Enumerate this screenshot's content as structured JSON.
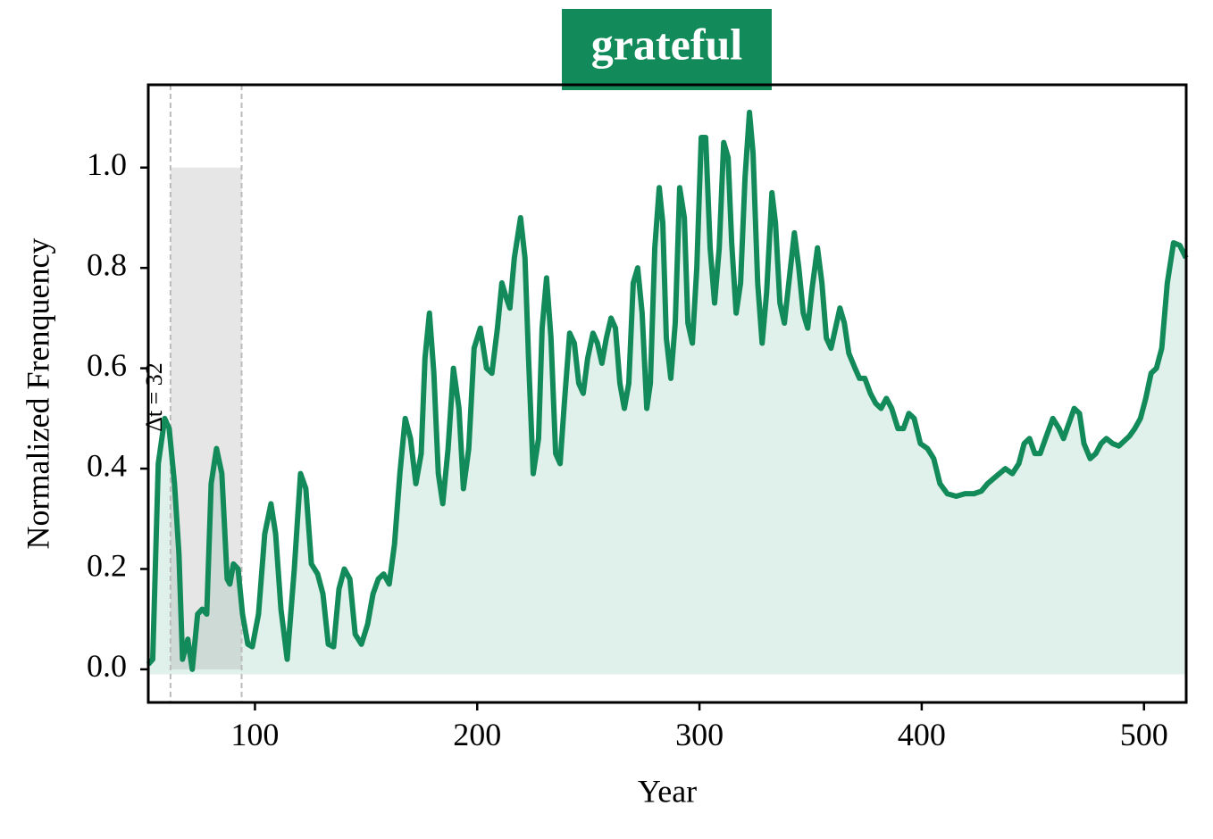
{
  "chart_data": {
    "type": "line",
    "title": "grateful",
    "x_label": "Year",
    "y_label": "Normalized Frenquency",
    "annotation": "Δt = 32",
    "xlim": [
      52,
      519
    ],
    "ylim": [
      -0.066,
      1.165
    ],
    "xticks": [
      100,
      200,
      300,
      400,
      500
    ],
    "yticks": [
      {
        "value": 0,
        "label": "0.0"
      },
      0.2,
      0.4,
      0.6,
      0.8,
      {
        "value": 1,
        "label": "1.0"
      }
    ],
    "area_baseline": -0.01,
    "shade": {
      "x": [
        62,
        94
      ],
      "y": [
        0,
        1
      ]
    },
    "series": [
      {
        "color": "#138a59",
        "x": [
          52,
          54,
          56.5,
          59.4,
          61.4,
          63.8,
          65.8,
          67.4,
          69.8,
          71.8,
          74.2,
          76.3,
          78.3,
          80.3,
          82.7,
          85.1,
          87.5,
          88.7,
          90.3,
          92.4,
          94.4,
          96.8,
          98.8,
          101.6,
          104.4,
          107.2,
          109.3,
          111.7,
          114.5,
          117.7,
          120.5,
          122.9,
          125.4,
          128.2,
          130.6,
          133,
          135.4,
          137.8,
          140.2,
          142.7,
          145.1,
          147.9,
          150.7,
          153.1,
          155.5,
          157.9,
          160.4,
          162.8,
          165.2,
          167.6,
          170,
          172.4,
          174.8,
          176.5,
          178.5,
          180.5,
          182.5,
          184.5,
          186.9,
          189.3,
          191.8,
          193.8,
          196.2,
          198.6,
          201.4,
          204.2,
          206.6,
          209.1,
          211.1,
          213.1,
          214.7,
          216.7,
          219.5,
          221.5,
          223.1,
          225.2,
          227.6,
          229.2,
          231.2,
          233.2,
          235.3,
          237.3,
          239.2,
          241.6,
          243.7,
          245.7,
          247.7,
          249.7,
          252.1,
          254.1,
          256.1,
          258.1,
          260.2,
          262.2,
          264.2,
          266.2,
          268.2,
          270.2,
          272.2,
          274.2,
          276.3,
          277.9,
          279.9,
          281.9,
          283.5,
          285.1,
          287.1,
          289.1,
          291.1,
          293.2,
          294.8,
          296.8,
          298.8,
          300.8,
          302.8,
          304.8,
          306.8,
          308.9,
          310.9,
          312.9,
          314.5,
          316.5,
          318.5,
          320.5,
          322.5,
          324.1,
          326.2,
          328.2,
          330.2,
          332.6,
          334.2,
          336.2,
          338.2,
          340.2,
          342.7,
          344.7,
          346.7,
          348.7,
          350.7,
          353.1,
          355.1,
          357.1,
          359.2,
          361.2,
          363.2,
          365.2,
          367.2,
          370,
          372,
          374.4,
          376.9,
          379.3,
          381.7,
          384.1,
          386.5,
          389.3,
          391.8,
          394.2,
          396.6,
          399.4,
          402.6,
          405.4,
          408.2,
          411.5,
          415.5,
          419.5,
          423.5,
          426.8,
          429.6,
          433.6,
          437.6,
          440.8,
          443.7,
          446.1,
          448.5,
          450.9,
          453.3,
          455.7,
          459,
          461.8,
          463.8,
          466.2,
          468.6,
          471,
          473,
          475.8,
          478.3,
          480.7,
          483.1,
          485.9,
          488.7,
          491.1,
          493.5,
          495.9,
          498.4,
          500.8,
          503.2,
          505.6,
          508,
          510.5,
          513.3,
          516.1,
          518.9
        ],
        "values": [
          0.01,
          0.02,
          0.41,
          0.5,
          0.48,
          0.37,
          0.23,
          0.02,
          0.06,
          0,
          0.11,
          0.12,
          0.11,
          0.37,
          0.44,
          0.39,
          0.18,
          0.17,
          0.21,
          0.2,
          0.11,
          0.05,
          0.045,
          0.11,
          0.27,
          0.33,
          0.27,
          0.12,
          0.02,
          0.2,
          0.39,
          0.36,
          0.21,
          0.19,
          0.15,
          0.05,
          0.045,
          0.16,
          0.2,
          0.18,
          0.07,
          0.05,
          0.09,
          0.15,
          0.18,
          0.19,
          0.17,
          0.25,
          0.39,
          0.5,
          0.46,
          0.37,
          0.43,
          0.62,
          0.71,
          0.59,
          0.39,
          0.33,
          0.44,
          0.6,
          0.52,
          0.36,
          0.44,
          0.64,
          0.68,
          0.6,
          0.59,
          0.68,
          0.77,
          0.74,
          0.72,
          0.82,
          0.9,
          0.82,
          0.62,
          0.39,
          0.46,
          0.68,
          0.78,
          0.66,
          0.43,
          0.41,
          0.53,
          0.67,
          0.65,
          0.57,
          0.55,
          0.62,
          0.67,
          0.65,
          0.61,
          0.66,
          0.7,
          0.68,
          0.57,
          0.52,
          0.57,
          0.77,
          0.8,
          0.71,
          0.52,
          0.57,
          0.84,
          0.96,
          0.89,
          0.66,
          0.58,
          0.69,
          0.96,
          0.9,
          0.69,
          0.65,
          0.8,
          1.06,
          1.06,
          0.84,
          0.73,
          0.84,
          1.05,
          1.02,
          0.85,
          0.71,
          0.77,
          0.98,
          1.11,
          1.03,
          0.77,
          0.65,
          0.75,
          0.95,
          0.89,
          0.73,
          0.69,
          0.77,
          0.87,
          0.8,
          0.71,
          0.68,
          0.76,
          0.84,
          0.77,
          0.66,
          0.64,
          0.68,
          0.72,
          0.69,
          0.63,
          0.6,
          0.58,
          0.58,
          0.55,
          0.53,
          0.52,
          0.54,
          0.52,
          0.48,
          0.48,
          0.51,
          0.5,
          0.45,
          0.44,
          0.42,
          0.37,
          0.35,
          0.345,
          0.35,
          0.35,
          0.355,
          0.37,
          0.385,
          0.4,
          0.39,
          0.41,
          0.45,
          0.46,
          0.43,
          0.43,
          0.46,
          0.5,
          0.48,
          0.46,
          0.49,
          0.52,
          0.51,
          0.45,
          0.42,
          0.43,
          0.45,
          0.46,
          0.45,
          0.445,
          0.455,
          0.465,
          0.48,
          0.5,
          0.54,
          0.59,
          0.6,
          0.64,
          0.77,
          0.85,
          0.845,
          0.82
        ]
      }
    ]
  }
}
